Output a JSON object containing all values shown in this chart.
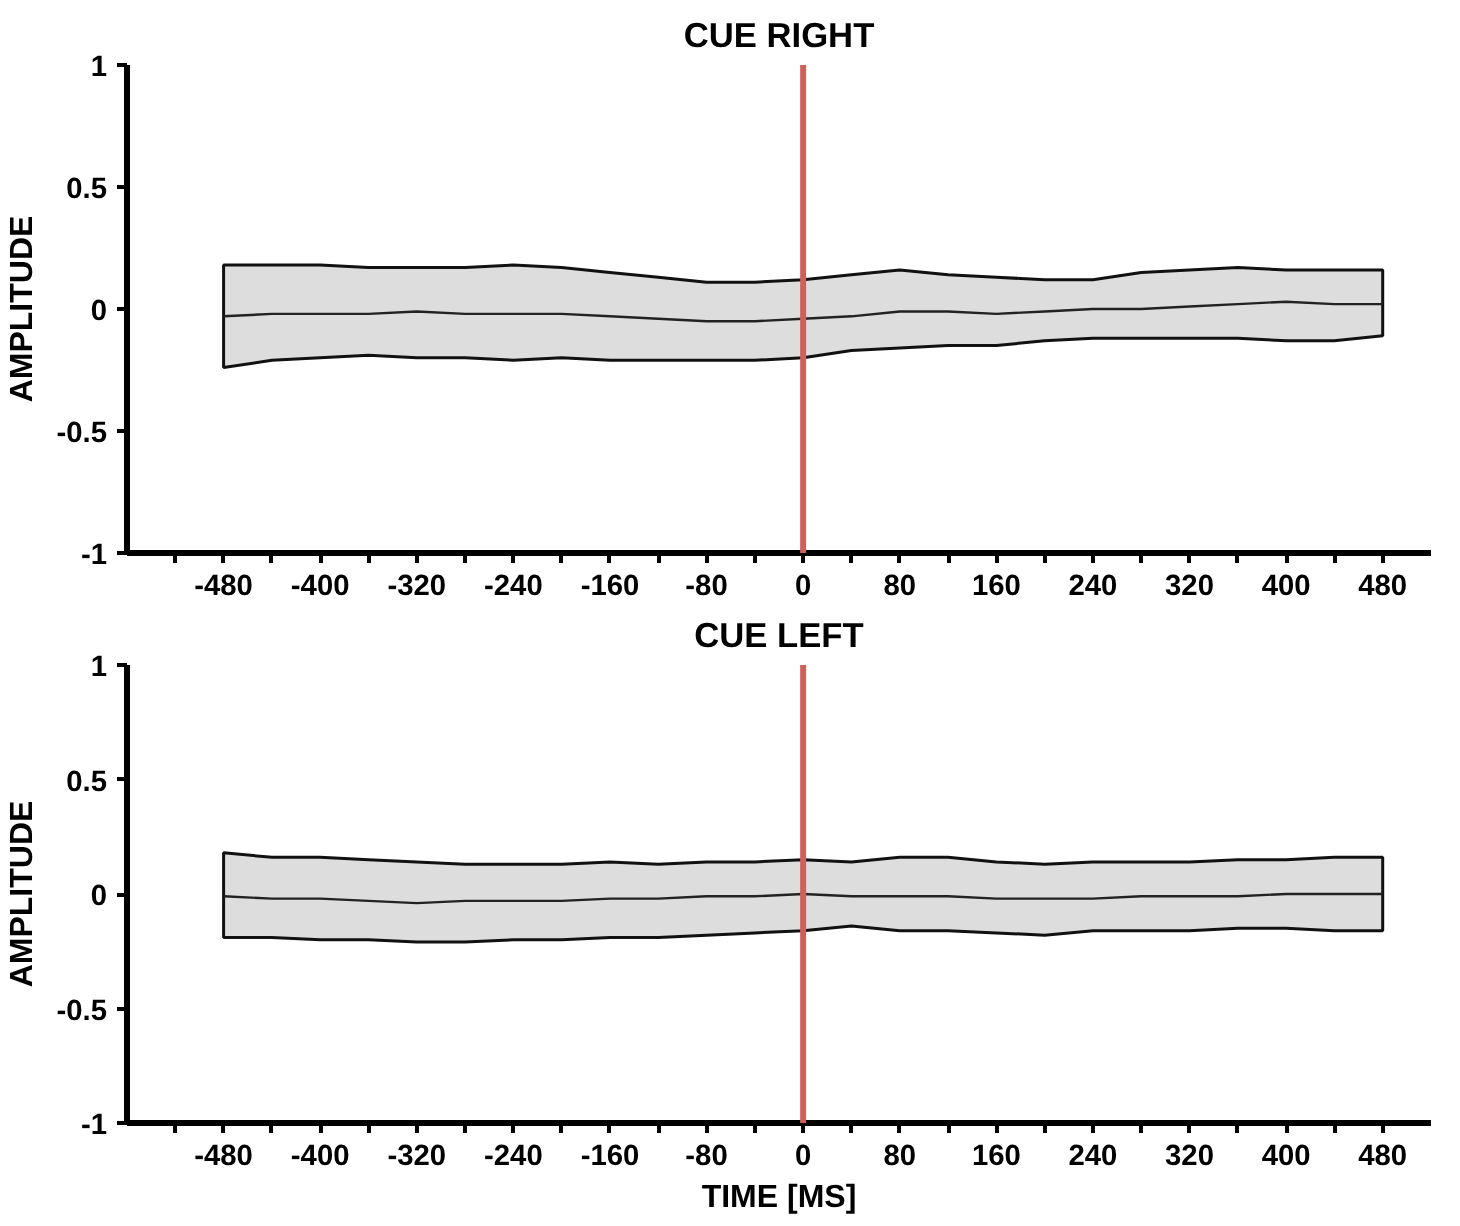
{
  "chart_data": [
    {
      "type": "line",
      "title": "CUE RIGHT",
      "ylabel": "AMPLITUDE",
      "x": [
        -480,
        -440,
        -400,
        -360,
        -320,
        -280,
        -240,
        -200,
        -160,
        -120,
        -80,
        -40,
        0,
        40,
        80,
        120,
        160,
        200,
        240,
        280,
        320,
        360,
        400,
        440,
        480
      ],
      "series": [
        {
          "color": "#222222",
          "values": [
            -0.03,
            -0.02,
            -0.02,
            -0.02,
            -0.01,
            -0.02,
            -0.02,
            -0.02,
            -0.03,
            -0.04,
            -0.05,
            -0.05,
            -0.04,
            -0.03,
            -0.01,
            -0.01,
            -0.02,
            -0.01,
            0,
            0,
            0.01,
            0.02,
            0.03,
            0.02,
            0.02
          ],
          "upper": [
            0.18,
            0.18,
            0.18,
            0.17,
            0.17,
            0.17,
            0.18,
            0.17,
            0.15,
            0.13,
            0.11,
            0.11,
            0.12,
            0.14,
            0.16,
            0.14,
            0.13,
            0.12,
            0.12,
            0.15,
            0.16,
            0.17,
            0.16,
            0.16,
            0.16
          ],
          "lower": [
            -0.24,
            -0.21,
            -0.2,
            -0.19,
            -0.2,
            -0.2,
            -0.21,
            -0.2,
            -0.21,
            -0.21,
            -0.21,
            -0.21,
            -0.2,
            -0.17,
            -0.16,
            -0.15,
            -0.15,
            -0.13,
            -0.12,
            -0.12,
            -0.12,
            -0.12,
            -0.13,
            -0.13,
            -0.11
          ]
        }
      ],
      "xlim": [
        -560,
        520
      ],
      "ylim": [
        -1,
        1
      ],
      "xticks": [
        -480,
        -400,
        -320,
        -240,
        -160,
        -80,
        0,
        80,
        160,
        240,
        320,
        400,
        480,
        {
          "value": -520,
          "label": null
        },
        {
          "value": -440,
          "label": null
        },
        {
          "value": -360,
          "label": null
        },
        {
          "value": -280,
          "label": null
        },
        {
          "value": -200,
          "label": null
        },
        {
          "value": -120,
          "label": null
        },
        {
          "value": -40,
          "label": null
        },
        {
          "value": 40,
          "label": null
        },
        {
          "value": 120,
          "label": null
        },
        {
          "value": 200,
          "label": null
        },
        {
          "value": 280,
          "label": null
        },
        {
          "value": 360,
          "label": null
        },
        {
          "value": 440,
          "label": null
        }
      ],
      "yticks": [
        -1,
        -0.5,
        0,
        0.5,
        1
      ],
      "ref_lines": [
        {
          "axis": "x",
          "value": 0,
          "label": null,
          "color": "#d0605a"
        }
      ],
      "grid": false,
      "marker": "none",
      "line_style": "solid"
    },
    {
      "type": "line",
      "title": "CUE LEFT",
      "xlabel": "TIME [MS]",
      "ylabel": "AMPLITUDE",
      "x": [
        -480,
        -440,
        -400,
        -360,
        -320,
        -280,
        -240,
        -200,
        -160,
        -120,
        -80,
        -40,
        0,
        40,
        80,
        120,
        160,
        200,
        240,
        280,
        320,
        360,
        400,
        440,
        480
      ],
      "series": [
        {
          "color": "#222222",
          "values": [
            -0.01,
            -0.02,
            -0.02,
            -0.03,
            -0.04,
            -0.03,
            -0.03,
            -0.03,
            -0.02,
            -0.02,
            -0.01,
            -0.01,
            0,
            -0.01,
            -0.01,
            -0.01,
            -0.02,
            -0.02,
            -0.02,
            -0.01,
            -0.01,
            -0.01,
            0,
            0,
            0
          ],
          "upper": [
            0.18,
            0.16,
            0.16,
            0.15,
            0.14,
            0.13,
            0.13,
            0.13,
            0.14,
            0.13,
            0.14,
            0.14,
            0.15,
            0.14,
            0.16,
            0.16,
            0.14,
            0.13,
            0.14,
            0.14,
            0.14,
            0.15,
            0.15,
            0.16,
            0.16
          ],
          "lower": [
            -0.19,
            -0.19,
            -0.2,
            -0.2,
            -0.21,
            -0.21,
            -0.2,
            -0.2,
            -0.19,
            -0.19,
            -0.18,
            -0.17,
            -0.16,
            -0.14,
            -0.16,
            -0.16,
            -0.17,
            -0.18,
            -0.16,
            -0.16,
            -0.16,
            -0.15,
            -0.15,
            -0.16,
            -0.16
          ]
        }
      ],
      "xlim": [
        -560,
        520
      ],
      "ylim": [
        -1,
        1
      ],
      "xticks": [
        -480,
        -400,
        -320,
        -240,
        -160,
        -80,
        0,
        80,
        160,
        240,
        320,
        400,
        480,
        {
          "value": -520,
          "label": null
        },
        {
          "value": -440,
          "label": null
        },
        {
          "value": -360,
          "label": null
        },
        {
          "value": -280,
          "label": null
        },
        {
          "value": -200,
          "label": null
        },
        {
          "value": -120,
          "label": null
        },
        {
          "value": -40,
          "label": null
        },
        {
          "value": 40,
          "label": null
        },
        {
          "value": 120,
          "label": null
        },
        {
          "value": 200,
          "label": null
        },
        {
          "value": 280,
          "label": null
        },
        {
          "value": 360,
          "label": null
        },
        {
          "value": 440,
          "label": null
        }
      ],
      "yticks": [
        -1,
        -0.5,
        0,
        0.5,
        1
      ],
      "ref_lines": [
        {
          "axis": "x",
          "value": 0,
          "label": null,
          "color": "#d0605a"
        }
      ],
      "grid": false,
      "marker": "none",
      "line_style": "solid"
    }
  ]
}
